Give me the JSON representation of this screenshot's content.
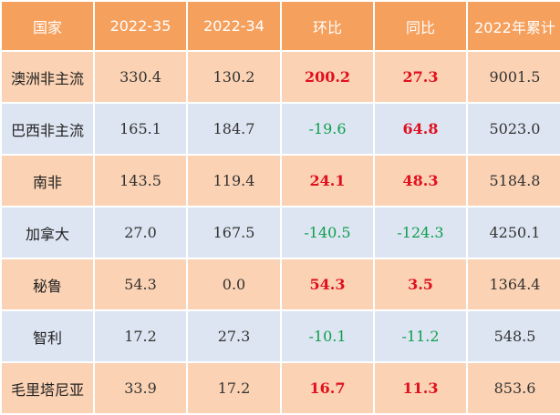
{
  "colors": {
    "header_bg": "#f5a05d",
    "row_odd_bg": "#fbd2b3",
    "row_even_bg": "#dde5f2",
    "positive": "#e0101f",
    "negative": "#0d9e4c"
  },
  "table": {
    "headers": [
      "国家",
      "2022-35",
      "2022-34",
      "环比",
      "同比",
      "2022年累计"
    ],
    "rows": [
      {
        "country": "澳洲非主流",
        "w35": "330.4",
        "w34": "130.2",
        "wow": "200.2",
        "yoy": "27.3",
        "ytd": "9001.5",
        "wow_sign": "pos",
        "yoy_sign": "pos"
      },
      {
        "country": "巴西非主流",
        "w35": "165.1",
        "w34": "184.7",
        "wow": "-19.6",
        "yoy": "64.8",
        "ytd": "5023.0",
        "wow_sign": "neg",
        "yoy_sign": "pos"
      },
      {
        "country": "南非",
        "w35": "143.5",
        "w34": "119.4",
        "wow": "24.1",
        "yoy": "48.3",
        "ytd": "5184.8",
        "wow_sign": "pos",
        "yoy_sign": "pos"
      },
      {
        "country": "加拿大",
        "w35": "27.0",
        "w34": "167.5",
        "wow": "-140.5",
        "yoy": "-124.3",
        "ytd": "4250.1",
        "wow_sign": "neg",
        "yoy_sign": "neg"
      },
      {
        "country": "秘鲁",
        "w35": "54.3",
        "w34": "0.0",
        "wow": "54.3",
        "yoy": "3.5",
        "ytd": "1364.4",
        "wow_sign": "pos",
        "yoy_sign": "pos"
      },
      {
        "country": "智利",
        "w35": "17.2",
        "w34": "27.3",
        "wow": "-10.1",
        "yoy": "-11.2",
        "ytd": "548.5",
        "wow_sign": "neg",
        "yoy_sign": "neg"
      },
      {
        "country": "毛里塔尼亚",
        "w35": "33.9",
        "w34": "17.2",
        "wow": "16.7",
        "yoy": "11.3",
        "ytd": "853.6",
        "wow_sign": "pos",
        "yoy_sign": "pos"
      }
    ]
  }
}
